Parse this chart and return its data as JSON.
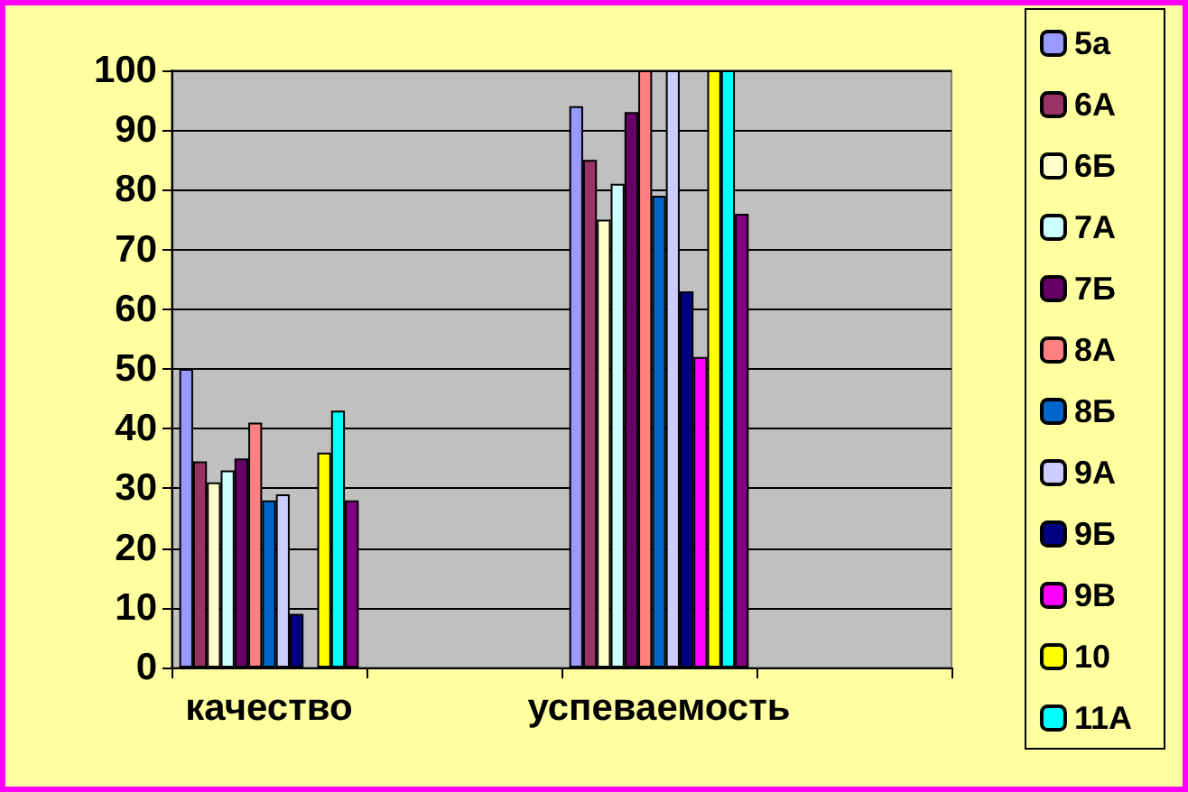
{
  "chart_data": {
    "type": "bar",
    "categories": [
      "качество",
      null,
      "успеваемость",
      null
    ],
    "ylim": [
      0,
      100
    ],
    "yticks": [
      0,
      10,
      20,
      30,
      40,
      50,
      60,
      70,
      80,
      90,
      100
    ],
    "grid": "y",
    "legend": "right",
    "series": [
      {
        "name": "5а",
        "color": "#9999ff",
        "values": [
          50,
          null,
          94,
          null
        ]
      },
      {
        "name": "6А",
        "color": "#993366",
        "values": [
          34.5,
          null,
          85,
          null
        ]
      },
      {
        "name": "6Б",
        "color": "#ffffcc",
        "values": [
          31,
          null,
          75,
          null
        ]
      },
      {
        "name": "7А",
        "color": "#ccffff",
        "values": [
          33,
          null,
          81,
          null
        ]
      },
      {
        "name": "7Б",
        "color": "#660066",
        "values": [
          35,
          null,
          93,
          null
        ]
      },
      {
        "name": "8А",
        "color": "#ff8080",
        "values": [
          41,
          null,
          100,
          null
        ]
      },
      {
        "name": "8Б",
        "color": "#0066cc",
        "values": [
          28,
          null,
          79,
          null
        ]
      },
      {
        "name": "9А",
        "color": "#ccccff",
        "values": [
          29,
          null,
          100,
          null
        ]
      },
      {
        "name": "9Б",
        "color": "#000080",
        "values": [
          9,
          null,
          63,
          null
        ]
      },
      {
        "name": "9В",
        "color": "#ff00ff",
        "values": [
          0,
          null,
          52,
          null
        ]
      },
      {
        "name": "10",
        "color": "#ffff00",
        "values": [
          36,
          null,
          100,
          null
        ]
      },
      {
        "name": "11А",
        "color": "#00ffff",
        "values": [
          43,
          null,
          100,
          null
        ]
      },
      {
        "color": "#800080",
        "values": [
          28,
          null,
          76,
          null
        ]
      }
    ]
  }
}
